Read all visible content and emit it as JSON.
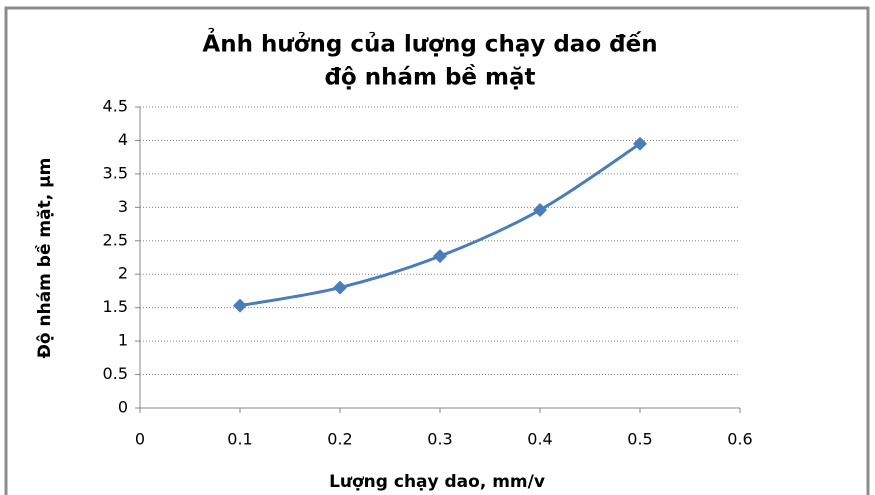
{
  "chart_data": {
    "type": "line",
    "title": [
      "Ảnh hưởng của lượng chạy dao đến",
      "độ nhám bề mặt"
    ],
    "x_label": "Lượng chạy dao, mm/v",
    "y_label": "Độ nhám bề mặt, µm",
    "x": [
      0.1,
      0.2,
      0.3,
      0.4,
      0.5
    ],
    "values": [
      1.53,
      1.8,
      2.27,
      2.96,
      3.95
    ],
    "color": "#4a7ebb",
    "xlim": [
      0,
      0.6
    ],
    "xticks": [
      0,
      0.1,
      0.2,
      0.3,
      0.4,
      0.5,
      0.6
    ],
    "ylim": [
      0,
      4.5
    ],
    "yticks": [
      0,
      0.5,
      1,
      1.5,
      2,
      2.5,
      3,
      3.5,
      4,
      4.5
    ],
    "grid": true
  }
}
